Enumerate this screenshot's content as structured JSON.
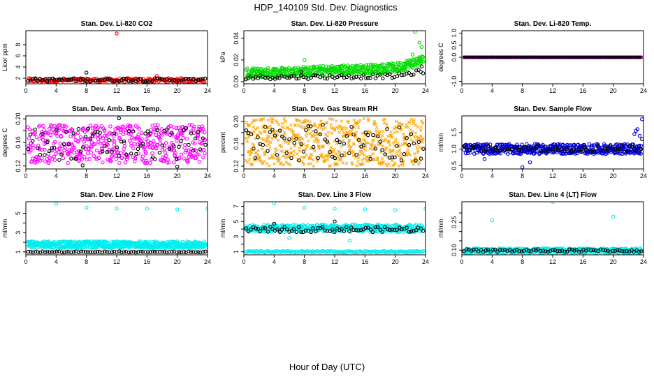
{
  "figure": {
    "title": "HDP_140109  Std. Dev. Diagnostics",
    "xlabel": "Hour of Day (UTC)"
  },
  "chart_data": [
    {
      "type": "scatter",
      "title": "Stan. Dev. Li-820 CO2",
      "ylabel": "Licor ppm",
      "xlim": [
        0,
        24
      ],
      "ylim": [
        1,
        10.5
      ],
      "xticks": [
        0,
        4,
        8,
        12,
        16,
        20,
        24
      ],
      "yticks": [
        2,
        4,
        6,
        8
      ],
      "series": [
        {
          "color": "#ff0000",
          "marker": "circle",
          "band": [
            1.3,
            2.0
          ],
          "n": 200,
          "outliers": [
            [
              12,
              10.0
            ],
            [
              17.3,
              2.4
            ],
            [
              20,
              1.9
            ],
            [
              20.5,
              2.0
            ]
          ]
        },
        {
          "color": "#000000",
          "marker": "circle",
          "band": [
            1.4,
            2.0
          ],
          "n": 75,
          "outliers": [
            [
              8,
              3.0
            ]
          ]
        }
      ]
    },
    {
      "type": "scatter",
      "title": "Stan. Dev. Li-820 Pressure",
      "ylabel": "kPa",
      "xlim": [
        0,
        24
      ],
      "ylim": [
        -0.002,
        0.047
      ],
      "xticks": [
        0,
        4,
        8,
        12,
        16,
        20,
        24
      ],
      "yticks": [
        0.0,
        0.02,
        0.04
      ],
      "yticklabels": [
        "0.00",
        "0.02",
        "0.04"
      ],
      "series": [
        {
          "color": "#00dd00",
          "marker": "circle",
          "band": [
            0.003,
            0.012
          ],
          "n": 460,
          "trend": [
            [
              0,
              0.007
            ],
            [
              20,
              0.012
            ],
            [
              24,
              0.02
            ]
          ],
          "outliers": [
            [
              8,
              0.02
            ],
            [
              22.6,
              0.046
            ],
            [
              23.2,
              0.036
            ],
            [
              23.5,
              0.032
            ],
            [
              22.3,
              0.025
            ]
          ]
        },
        {
          "color": "#000000",
          "marker": "circle",
          "band": [
            0.002,
            0.006
          ],
          "n": 75,
          "trend": [
            [
              0,
              0.004
            ],
            [
              20,
              0.005
            ],
            [
              24,
              0.01
            ]
          ],
          "outliers": [
            [
              7.6,
              0.009
            ],
            [
              23.5,
              0.014
            ]
          ]
        }
      ]
    },
    {
      "type": "scatter",
      "title": "Stan. Dev. Li-820 Temp.",
      "ylabel": "degrees C",
      "xlim": [
        0,
        24
      ],
      "ylim": [
        -1.1,
        1.1
      ],
      "xticks": [
        0,
        4,
        8,
        12,
        16,
        20,
        24
      ],
      "yticks": [
        -1.0,
        0.0,
        0.5,
        1.0
      ],
      "yticklabels": [
        "-1.0",
        "0.0",
        "0.5",
        "1.0"
      ],
      "series": [
        {
          "color": "#ff00ff",
          "marker": "circle",
          "band": [
            0.0,
            0.0
          ],
          "n": 150
        },
        {
          "color": "#000000",
          "marker": "x",
          "band": [
            0.0,
            0.0
          ],
          "n": 150
        }
      ]
    },
    {
      "type": "scatter",
      "title": "Stan. Dev. Amb. Box Temp.",
      "ylabel": "degrees C",
      "xlim": [
        0,
        24
      ],
      "ylim": [
        0.115,
        0.205
      ],
      "xticks": [
        0,
        4,
        8,
        12,
        16,
        20,
        24
      ],
      "yticks": [
        0.12,
        0.14,
        0.16,
        0.18,
        0.2
      ],
      "yticklabels": [
        "0.12",
        "",
        "0.16",
        "",
        "0.20"
      ],
      "series": [
        {
          "color": "#ff00ff",
          "marker": "circle",
          "band": [
            0.125,
            0.19
          ],
          "n": 470
        },
        {
          "color": "#000000",
          "marker": "circle",
          "band": [
            0.13,
            0.185
          ],
          "n": 75,
          "outliers": [
            [
              12.3,
              0.201
            ],
            [
              20,
              0.119
            ],
            [
              7.5,
              0.121
            ]
          ]
        }
      ]
    },
    {
      "type": "scatter",
      "title": "Stan. Dev. Gas Stream RH",
      "ylabel": "percent",
      "xlim": [
        0,
        24
      ],
      "ylim": [
        0.115,
        0.21
      ],
      "xticks": [
        0,
        4,
        8,
        12,
        16,
        20,
        24
      ],
      "yticks": [
        0.12,
        0.14,
        0.16,
        0.18,
        0.2
      ],
      "yticklabels": [
        "0.12",
        "",
        "0.16",
        "",
        "0.20"
      ],
      "series": [
        {
          "color": "#ffa500",
          "marker": "x",
          "band": [
            0.12,
            0.205
          ],
          "n": 600
        },
        {
          "color": "#000000",
          "marker": "circle",
          "band": [
            0.13,
            0.195
          ],
          "n": 75
        }
      ]
    },
    {
      "type": "scatter",
      "title": "Stan. Dev. Sample Flow",
      "ylabel": "ml/min",
      "xlim": [
        0,
        24
      ],
      "ylim": [
        0.4,
        2.0
      ],
      "xticks": [
        0,
        4,
        8,
        12,
        16,
        20,
        24
      ],
      "yticks": [
        0.5,
        1.0,
        1.5
      ],
      "yticklabels": [
        "0.5",
        "1.0",
        "1.5"
      ],
      "series": [
        {
          "color": "#0000dd",
          "marker": "circle",
          "band": [
            0.85,
            1.15
          ],
          "n": 460,
          "outliers": [
            [
              23.8,
              1.9
            ],
            [
              23.2,
              1.6
            ],
            [
              23,
              1.55
            ],
            [
              22.8,
              1.45
            ],
            [
              23.5,
              1.4
            ],
            [
              8,
              0.45
            ],
            [
              9,
              0.6
            ],
            [
              3,
              0.7
            ]
          ]
        },
        {
          "color": "#000000",
          "marker": "circle",
          "band": [
            0.9,
            1.1
          ],
          "n": 75,
          "outliers": [
            [
              23.8,
              1.3
            ]
          ]
        }
      ]
    },
    {
      "type": "scatter",
      "title": "Stan. Dev. Line 2 Flow",
      "ylabel": "ml/min",
      "xlim": [
        0,
        24
      ],
      "ylim": [
        0.7,
        6.2
      ],
      "xticks": [
        0,
        4,
        8,
        12,
        16,
        20,
        24
      ],
      "yticks": [
        1,
        2,
        3,
        4,
        5
      ],
      "yticklabels": [
        "1",
        "",
        "3",
        "",
        "5"
      ],
      "series": [
        {
          "color": "#00eeee",
          "marker": "circle",
          "band": [
            1.4,
            2.1
          ],
          "n": 600,
          "outliers": [
            [
              4,
              6.0
            ],
            [
              8,
              5.6
            ],
            [
              12,
              5.5
            ],
            [
              16,
              5.5
            ],
            [
              20,
              5.4
            ],
            [
              24,
              5.5
            ]
          ]
        },
        {
          "color": "#000000",
          "marker": "circle",
          "band": [
            0.95,
            1.05
          ],
          "n": 75
        }
      ]
    },
    {
      "type": "scatter",
      "title": "Stan. Dev. Line 3 Flow",
      "ylabel": "ml/min",
      "xlim": [
        0,
        24
      ],
      "ylim": [
        0.6,
        7.6
      ],
      "xticks": [
        0,
        4,
        8,
        12,
        16,
        20,
        24
      ],
      "yticks": [
        1,
        2,
        3,
        4,
        5,
        6,
        7
      ],
      "yticklabels": [
        "1",
        "",
        "3",
        "",
        "5",
        "",
        "7"
      ],
      "series": [
        {
          "color": "#00eeee",
          "marker": "circle",
          "band": [
            3.6,
            4.6
          ],
          "n": 420,
          "outliers": [
            [
              4,
              7.4
            ],
            [
              8,
              6.8
            ],
            [
              12,
              6.7
            ],
            [
              16,
              6.6
            ],
            [
              20,
              6.5
            ],
            [
              24,
              6.7
            ],
            [
              6,
              2.8
            ],
            [
              14,
              2.5
            ]
          ]
        },
        {
          "color": "#00eeee",
          "marker": "circle",
          "band": [
            0.9,
            1.1
          ],
          "n": 160
        },
        {
          "color": "#000000",
          "marker": "circle",
          "band": [
            3.6,
            4.3
          ],
          "n": 75,
          "outliers": [
            [
              4,
              4.7
            ],
            [
              12,
              5.0
            ]
          ]
        }
      ]
    },
    {
      "type": "scatter",
      "title": "Stan. Dev. Line 4 (LT) Flow",
      "ylabel": "ml/min",
      "xlim": [
        0,
        24
      ],
      "ylim": [
        0.075,
        0.36
      ],
      "xticks": [
        0,
        4,
        8,
        12,
        16,
        20,
        24
      ],
      "yticks": [
        0.1,
        0.15,
        0.2,
        0.25,
        0.3
      ],
      "yticklabels": [
        "0.10",
        "",
        "",
        "0.25",
        ""
      ],
      "series": [
        {
          "color": "#00eeee",
          "marker": "circle",
          "band": [
            0.085,
            0.11
          ],
          "n": 420,
          "outliers": [
            [
              4,
              0.26
            ],
            [
              12,
              0.36
            ],
            [
              20,
              0.28
            ]
          ]
        },
        {
          "color": "#000000",
          "marker": "circle",
          "band": [
            0.09,
            0.105
          ],
          "n": 75
        }
      ]
    }
  ]
}
